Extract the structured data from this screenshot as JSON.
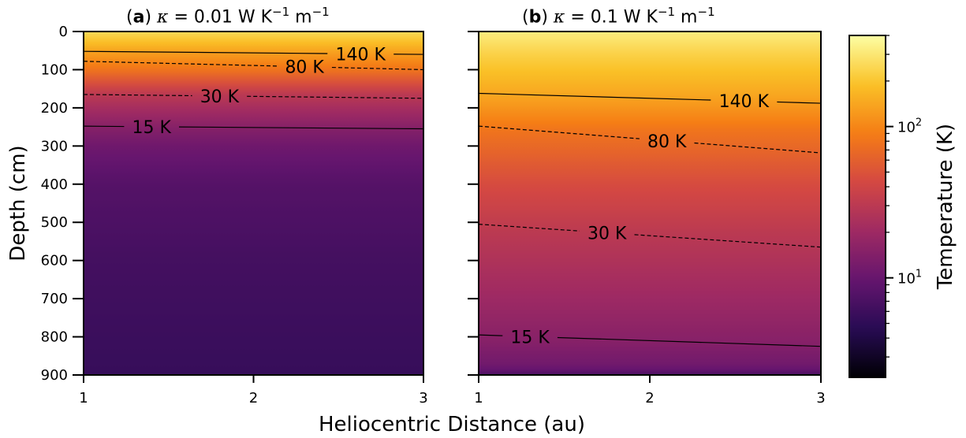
{
  "chart_data": {
    "type": "heatmap",
    "colormap": "inferno",
    "colorbar": {
      "label": "Temperature (K)",
      "scale": "log",
      "range": [
        2.2,
        400
      ],
      "ticks": [
        {
          "value": 100,
          "base": "10",
          "exp": "2"
        },
        {
          "value": 10,
          "base": "10",
          "exp": "1"
        }
      ]
    },
    "xlabel": "Heliocentric Distance (au)",
    "ylabel": "Depth (cm)",
    "xlim": [
      1,
      3
    ],
    "ylim": [
      900,
      0
    ],
    "xticks": [
      "1",
      "2",
      "3"
    ],
    "yticks": [
      "0",
      "100",
      "200",
      "300",
      "400",
      "500",
      "600",
      "700",
      "800",
      "900"
    ],
    "panels": [
      {
        "id": "a",
        "title_letter": "a",
        "title_text": "κ = 0.01 W K",
        "title_sup1": "−1",
        "title_mid": " m",
        "title_sup2": "−1",
        "kappa": 0.01,
        "temperature_profile": [
          [
            0,
            260
          ],
          [
            50,
            140
          ],
          [
            75,
            105
          ],
          [
            100,
            80
          ],
          [
            165,
            30
          ],
          [
            250,
            15
          ],
          [
            300,
            11
          ],
          [
            400,
            8
          ],
          [
            600,
            6.5
          ],
          [
            900,
            5.5
          ]
        ],
        "contours": [
          {
            "label": "140 K",
            "style": "solid",
            "depth": [
              52,
              60
            ],
            "label_x": 2.63
          },
          {
            "label": "80 K",
            "style": "dashed",
            "depth": [
              78,
              100
            ],
            "label_x": 2.3
          },
          {
            "label": "30 K",
            "style": "dashed",
            "depth": [
              165,
              175
            ],
            "label_x": 1.8
          },
          {
            "label": "15 K",
            "style": "solid",
            "depth": [
              248,
              255
            ],
            "label_x": 1.4
          }
        ]
      },
      {
        "id": "b",
        "title_letter": "b",
        "title_text": "κ = 0.1 W K",
        "title_sup1": "−1",
        "title_mid": " m",
        "title_sup2": "−1",
        "kappa": 0.1,
        "temperature_profile": [
          [
            0,
            320
          ],
          [
            60,
            230
          ],
          [
            170,
            140
          ],
          [
            260,
            80
          ],
          [
            400,
            45
          ],
          [
            530,
            30
          ],
          [
            700,
            20
          ],
          [
            810,
            15
          ],
          [
            880,
            11
          ],
          [
            900,
            7
          ]
        ],
        "contours": [
          {
            "label": "140 K",
            "style": "solid",
            "depth": [
              162,
              188
            ],
            "label_x": 2.55
          },
          {
            "label": "80 K",
            "style": "dashed",
            "depth": [
              248,
              318
            ],
            "label_x": 2.1
          },
          {
            "label": "30 K",
            "style": "dashed",
            "depth": [
              505,
              565
            ],
            "label_x": 1.75
          },
          {
            "label": "15 K",
            "style": "solid",
            "depth": [
              795,
              825
            ],
            "label_x": 1.3
          }
        ]
      }
    ]
  }
}
